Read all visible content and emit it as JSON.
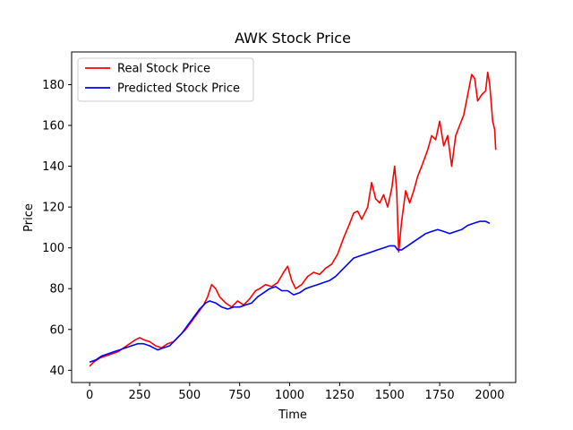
{
  "chart_data": {
    "type": "line",
    "title": "AWK Stock Price",
    "xlabel": "Time",
    "ylabel": "Price",
    "xlim": [
      -90,
      2130
    ],
    "ylim": [
      34,
      196
    ],
    "xticks": [
      0,
      250,
      500,
      750,
      1000,
      1250,
      1500,
      1750,
      2000
    ],
    "yticks": [
      40,
      60,
      80,
      100,
      120,
      140,
      160,
      180
    ],
    "grid": false,
    "legend_position": "top-left",
    "series": [
      {
        "name": "Real Stock Price",
        "color": "#ff0000",
        "points": [
          [
            0,
            42
          ],
          [
            20,
            44
          ],
          [
            50,
            46
          ],
          [
            80,
            47
          ],
          [
            110,
            48
          ],
          [
            140,
            49
          ],
          [
            170,
            51
          ],
          [
            200,
            53
          ],
          [
            230,
            55
          ],
          [
            250,
            56
          ],
          [
            270,
            55
          ],
          [
            300,
            54
          ],
          [
            330,
            52
          ],
          [
            360,
            51
          ],
          [
            390,
            53
          ],
          [
            420,
            54
          ],
          [
            450,
            57
          ],
          [
            480,
            60
          ],
          [
            510,
            64
          ],
          [
            540,
            68
          ],
          [
            570,
            72
          ],
          [
            590,
            76
          ],
          [
            610,
            82
          ],
          [
            630,
            80
          ],
          [
            650,
            76
          ],
          [
            680,
            73
          ],
          [
            710,
            71
          ],
          [
            740,
            74
          ],
          [
            770,
            72
          ],
          [
            800,
            75
          ],
          [
            830,
            79
          ],
          [
            850,
            80
          ],
          [
            880,
            82
          ],
          [
            910,
            81
          ],
          [
            940,
            83
          ],
          [
            970,
            88
          ],
          [
            990,
            91
          ],
          [
            1010,
            84
          ],
          [
            1030,
            80
          ],
          [
            1060,
            82
          ],
          [
            1090,
            86
          ],
          [
            1120,
            88
          ],
          [
            1150,
            87
          ],
          [
            1180,
            90
          ],
          [
            1210,
            92
          ],
          [
            1240,
            97
          ],
          [
            1270,
            105
          ],
          [
            1300,
            112
          ],
          [
            1320,
            117
          ],
          [
            1340,
            118
          ],
          [
            1360,
            114
          ],
          [
            1390,
            120
          ],
          [
            1410,
            132
          ],
          [
            1430,
            124
          ],
          [
            1450,
            122
          ],
          [
            1470,
            126
          ],
          [
            1490,
            120
          ],
          [
            1510,
            129
          ],
          [
            1525,
            140
          ],
          [
            1535,
            128
          ],
          [
            1545,
            98
          ],
          [
            1560,
            113
          ],
          [
            1580,
            128
          ],
          [
            1600,
            122
          ],
          [
            1620,
            128
          ],
          [
            1640,
            135
          ],
          [
            1660,
            140
          ],
          [
            1690,
            148
          ],
          [
            1710,
            155
          ],
          [
            1730,
            153
          ],
          [
            1750,
            162
          ],
          [
            1770,
            150
          ],
          [
            1790,
            155
          ],
          [
            1810,
            140
          ],
          [
            1830,
            155
          ],
          [
            1850,
            160
          ],
          [
            1870,
            165
          ],
          [
            1890,
            175
          ],
          [
            1910,
            185
          ],
          [
            1925,
            183
          ],
          [
            1940,
            172
          ],
          [
            1960,
            175
          ],
          [
            1980,
            177
          ],
          [
            1990,
            186
          ],
          [
            2000,
            180
          ],
          [
            2015,
            162
          ],
          [
            2025,
            158
          ],
          [
            2030,
            148
          ]
        ]
      },
      {
        "name": "Predicted Stock Price",
        "color": "#0000ff",
        "points": [
          [
            0,
            44
          ],
          [
            30,
            45
          ],
          [
            60,
            47
          ],
          [
            90,
            48
          ],
          [
            120,
            49
          ],
          [
            150,
            50
          ],
          [
            180,
            51
          ],
          [
            210,
            52
          ],
          [
            240,
            53
          ],
          [
            270,
            53
          ],
          [
            300,
            52
          ],
          [
            320,
            51
          ],
          [
            340,
            50
          ],
          [
            370,
            51
          ],
          [
            400,
            52
          ],
          [
            430,
            55
          ],
          [
            460,
            58
          ],
          [
            490,
            62
          ],
          [
            520,
            66
          ],
          [
            550,
            70
          ],
          [
            580,
            73
          ],
          [
            600,
            74
          ],
          [
            630,
            73
          ],
          [
            660,
            71
          ],
          [
            690,
            70
          ],
          [
            720,
            71
          ],
          [
            750,
            71
          ],
          [
            780,
            72
          ],
          [
            810,
            73
          ],
          [
            840,
            76
          ],
          [
            870,
            78
          ],
          [
            900,
            80
          ],
          [
            930,
            81
          ],
          [
            960,
            79
          ],
          [
            990,
            79
          ],
          [
            1020,
            77
          ],
          [
            1050,
            78
          ],
          [
            1080,
            80
          ],
          [
            1110,
            81
          ],
          [
            1140,
            82
          ],
          [
            1170,
            83
          ],
          [
            1200,
            84
          ],
          [
            1230,
            86
          ],
          [
            1260,
            89
          ],
          [
            1290,
            92
          ],
          [
            1320,
            95
          ],
          [
            1350,
            96
          ],
          [
            1380,
            97
          ],
          [
            1410,
            98
          ],
          [
            1440,
            99
          ],
          [
            1470,
            100
          ],
          [
            1500,
            101
          ],
          [
            1525,
            101
          ],
          [
            1540,
            99
          ],
          [
            1560,
            99
          ],
          [
            1590,
            101
          ],
          [
            1620,
            103
          ],
          [
            1650,
            105
          ],
          [
            1680,
            107
          ],
          [
            1710,
            108
          ],
          [
            1740,
            109
          ],
          [
            1770,
            108
          ],
          [
            1800,
            107
          ],
          [
            1830,
            108
          ],
          [
            1860,
            109
          ],
          [
            1890,
            111
          ],
          [
            1920,
            112
          ],
          [
            1950,
            113
          ],
          [
            1980,
            113
          ],
          [
            2000,
            112
          ]
        ]
      }
    ]
  }
}
